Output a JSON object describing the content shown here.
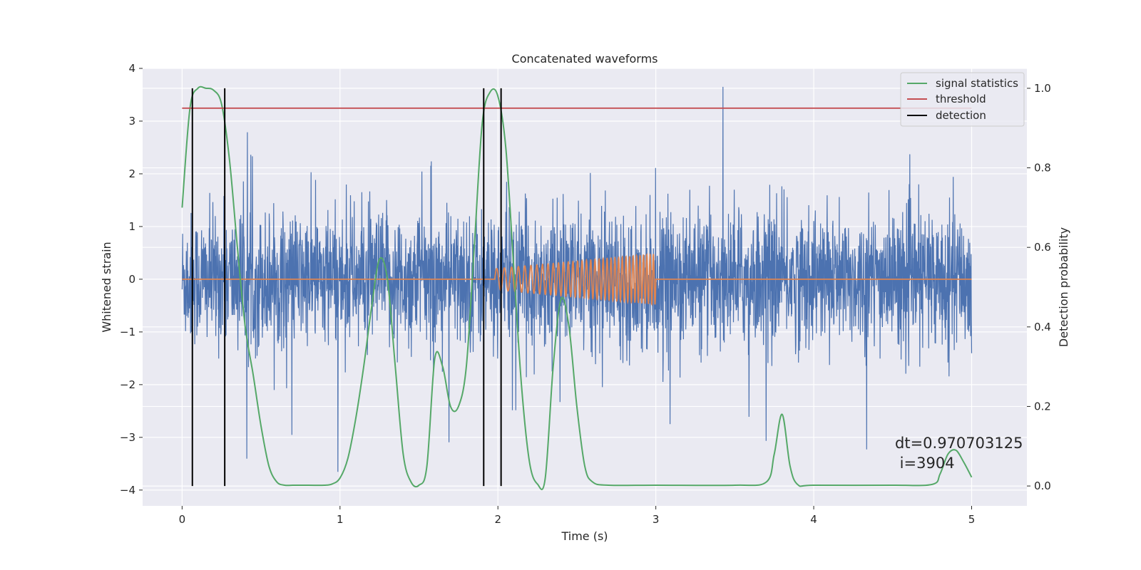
{
  "chart_data": {
    "type": "line",
    "title": "Concatenated waveforms",
    "xlabel": "Time (s)",
    "ylabel": "Whitened strain",
    "ylabel_right": "Detection probability",
    "xlim": [
      -0.25,
      5.35
    ],
    "ylim_left": [
      -4.3,
      4.0
    ],
    "ylim_right": [
      -0.05,
      1.05
    ],
    "x_ticks": [
      0,
      1,
      2,
      3,
      4,
      5
    ],
    "y_ticks_left": [
      -4,
      -3,
      -2,
      -1,
      0,
      1,
      2,
      3,
      4
    ],
    "y_ticks_right": [
      0.0,
      0.2,
      0.4,
      0.6,
      0.8,
      1.0
    ],
    "grid": true,
    "legend_position": "top-right",
    "legend": [
      "signal statistics",
      "threshold",
      "detection"
    ],
    "annotation": {
      "lines": [
        "dt=0.970703125",
        " i=3904"
      ],
      "x": 4.5,
      "y": -3.25
    },
    "colors": {
      "noise": "#4c72b0",
      "injection": "#dd8452",
      "signal_statistics": "#55a868",
      "threshold": "#c44e52",
      "detection": "#000000",
      "background": "#eaeaf2",
      "grid": "#ffffff"
    },
    "series": [
      {
        "name": "signal statistics",
        "axis": "right",
        "x": [
          0.0,
          0.05,
          0.1,
          0.15,
          0.2,
          0.25,
          0.3,
          0.35,
          0.4,
          0.45,
          0.5,
          0.55,
          0.6,
          0.65,
          0.7,
          0.8,
          0.9,
          0.95,
          1.0,
          1.05,
          1.1,
          1.15,
          1.2,
          1.25,
          1.3,
          1.35,
          1.4,
          1.45,
          1.5,
          1.55,
          1.6,
          1.65,
          1.7,
          1.75,
          1.8,
          1.85,
          1.9,
          1.95,
          2.0,
          2.05,
          2.1,
          2.15,
          2.2,
          2.25,
          2.3,
          2.35,
          2.4,
          2.45,
          2.5,
          2.55,
          2.6,
          2.7,
          3.0,
          3.5,
          3.7,
          3.75,
          3.8,
          3.85,
          3.9,
          4.0,
          4.5,
          4.75,
          4.8,
          4.85,
          4.9,
          4.95,
          5.0
        ],
        "y": [
          0.7,
          0.95,
          1.0,
          1.0,
          0.995,
          0.96,
          0.82,
          0.6,
          0.4,
          0.28,
          0.15,
          0.05,
          0.01,
          0.002,
          0.002,
          0.002,
          0.002,
          0.005,
          0.02,
          0.07,
          0.17,
          0.3,
          0.45,
          0.57,
          0.52,
          0.3,
          0.08,
          0.01,
          0.002,
          0.05,
          0.32,
          0.3,
          0.2,
          0.2,
          0.3,
          0.6,
          0.91,
          0.99,
          0.98,
          0.85,
          0.55,
          0.25,
          0.06,
          0.005,
          0.02,
          0.3,
          0.47,
          0.4,
          0.2,
          0.05,
          0.01,
          0.002,
          0.002,
          0.002,
          0.01,
          0.08,
          0.18,
          0.05,
          0.003,
          0.002,
          0.002,
          0.004,
          0.03,
          0.08,
          0.09,
          0.06,
          0.022
        ]
      },
      {
        "name": "threshold",
        "axis": "right",
        "x": [
          0.0,
          5.0
        ],
        "y": [
          0.95,
          0.95
        ]
      },
      {
        "name": "detection",
        "axis": "right",
        "x_positions": [
          0.065,
          0.27,
          1.91,
          2.02
        ],
        "y_range": [
          0.0,
          1.0
        ]
      },
      {
        "name": "",
        "axis": "left",
        "description": "whitened noise",
        "x_range": [
          0.0,
          5.0
        ],
        "envelope_typical": [
          -1.2,
          1.2
        ],
        "envelope_peaks": [
          -4.0,
          3.65
        ]
      },
      {
        "name": "",
        "axis": "left",
        "description": "injected chirp",
        "x_range": [
          1.98,
          3.0
        ],
        "start_freq": 20,
        "end_freq": 50,
        "amplitude_start": 0.2,
        "amplitude_end": 0.48
      }
    ]
  }
}
